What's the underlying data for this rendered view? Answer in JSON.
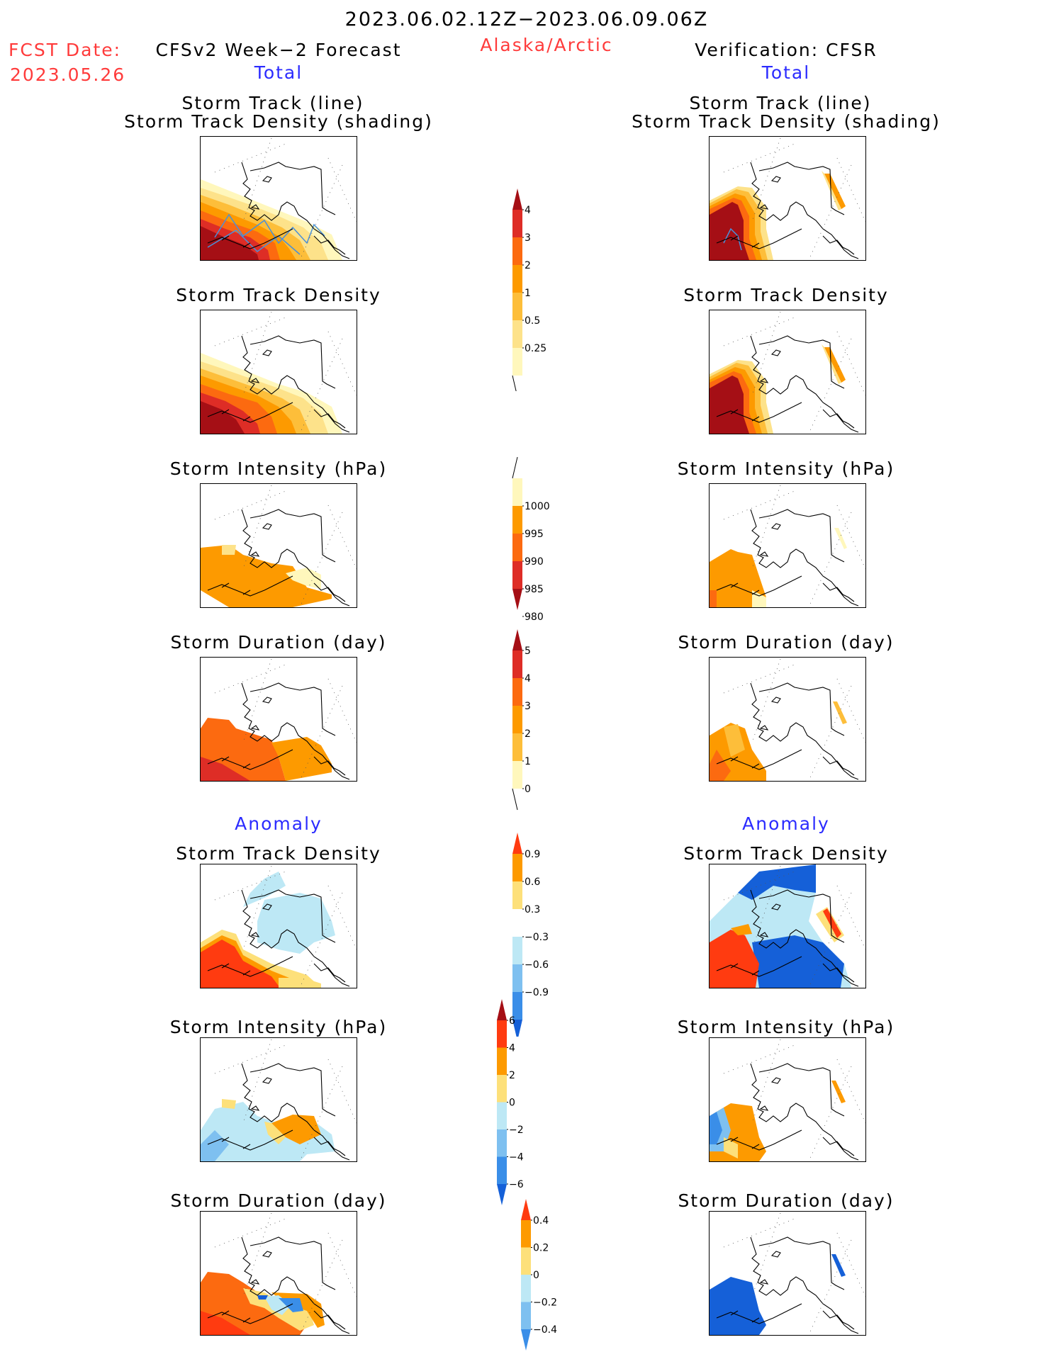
{
  "header": {
    "period": "2023.06.02.12Z−2023.06.09.06Z",
    "fcst_label": "FCST Date:",
    "fcst_date": "2023.05.26",
    "left_title": "CFSv2 Week−2 Forecast",
    "region": "Alaska/Arctic",
    "right_title": "Verification: CFSR",
    "total_left": "Total",
    "total_right": "Total"
  },
  "panels": {
    "track_line": "Storm Track (line)",
    "track_shading": "Storm Track Density (shading)",
    "density": "Storm Track Density",
    "intensity": "Storm Intensity (hPa)",
    "duration": "Storm Duration (day)",
    "anomaly_left": "Anomaly",
    "anomaly_right": "Anomaly"
  },
  "colorbars": {
    "density": {
      "levels": [
        "4",
        "3",
        "2",
        "1",
        "0.5",
        "0.25"
      ],
      "colors": [
        "#a50f15",
        "#de2d26",
        "#fc6a10",
        "#fd9a00",
        "#fdbe3a",
        "#fde28a",
        "#fff7bc"
      ]
    },
    "intensity": {
      "levels": [
        "1000",
        "995",
        "990",
        "985",
        "980"
      ],
      "colors": [
        "#fff7bc",
        "#fd9a00",
        "#fc6a10",
        "#de2d26",
        "#a50f15"
      ]
    },
    "duration": {
      "levels": [
        "5",
        "4",
        "3",
        "2",
        "1",
        "0"
      ],
      "colors": [
        "#a50f15",
        "#de2d26",
        "#fc6a10",
        "#fd9a00",
        "#fdbe3a",
        "#fff7bc"
      ]
    },
    "density_anom": {
      "levels": [
        "0.9",
        "0.6",
        "0.3",
        "−0.3",
        "−0.6",
        "−0.9"
      ],
      "colors": [
        "#ff3b10",
        "#fd9a00",
        "#fde07a",
        "#ffffff",
        "#bde8f5",
        "#7ec0f0",
        "#3a8ee8",
        "#1560d8"
      ]
    },
    "intensity_anom": {
      "levels": [
        "6",
        "4",
        "2",
        "0",
        "−2",
        "−4",
        "−6"
      ],
      "colors": [
        "#a50f15",
        "#ff3b10",
        "#fd9a00",
        "#fde07a",
        "#bde8f5",
        "#7ec0f0",
        "#3a8ee8",
        "#1560d8"
      ]
    },
    "duration_anom": {
      "levels": [
        "0.4",
        "0.2",
        "0",
        "−0.2",
        "−0.4"
      ],
      "colors": [
        "#ff3b10",
        "#fd9a00",
        "#fde07a",
        "#bde8f5",
        "#7ec0f0",
        "#3a8ee8"
      ]
    }
  },
  "colors": {
    "dark_red": "#a50f15",
    "red": "#de2d26",
    "orange_red": "#fc6a10",
    "orange": "#fd9a00",
    "light_orange": "#fdbe3a",
    "yellow": "#fde28a",
    "pale_yellow": "#fff7bc",
    "anom_red": "#ff3b10",
    "light_blue": "#bde8f5",
    "mid_blue": "#7ec0f0",
    "blue": "#3a8ee8",
    "dark_blue": "#1560d8",
    "track_line": "#4a90d9"
  }
}
